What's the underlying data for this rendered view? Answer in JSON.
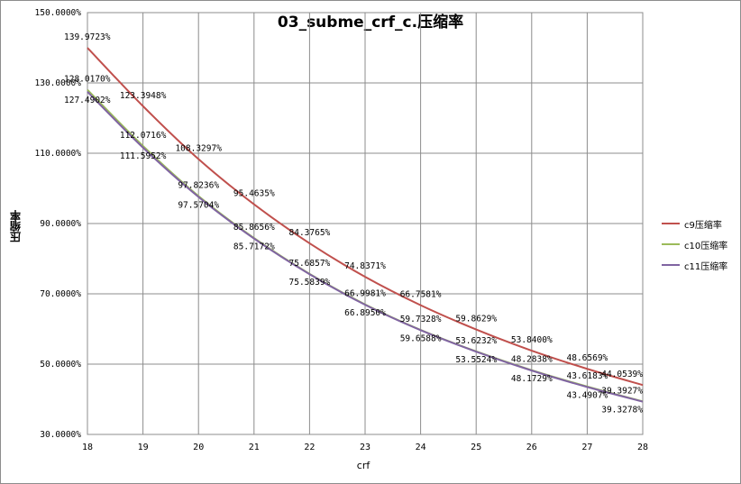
{
  "chart_data": {
    "type": "line",
    "title": "03_subme_crf_c.压缩率",
    "xlabel": "crf",
    "ylabel": "压缩率",
    "x": [
      18,
      19,
      20,
      21,
      22,
      23,
      24,
      25,
      26,
      27,
      28
    ],
    "ylim": [
      30,
      150
    ],
    "yticks": [
      "30.0000%",
      "50.0000%",
      "70.0000%",
      "90.0000%",
      "110.0000%",
      "130.0000%",
      "150.0000%"
    ],
    "xticks": [
      "18",
      "19",
      "20",
      "21",
      "22",
      "23",
      "24",
      "25",
      "26",
      "27",
      "28"
    ],
    "grid": true,
    "legend_position": "right",
    "series": [
      {
        "name": "c9压缩率",
        "color": "#c0504d",
        "values": [
          139.9723,
          123.3948,
          108.3297,
          95.4635,
          84.3765,
          74.8371,
          66.7581,
          59.8629,
          53.84,
          48.6569,
          44.0539
        ],
        "labels": [
          "139.9723%",
          "123.3948%",
          "108.3297%",
          "95.4635%",
          "84.3765%",
          "74.8371%",
          "66.7581%",
          "59.8629%",
          "53.8400%",
          "48.6569%",
          "44.0539%"
        ]
      },
      {
        "name": "c10压缩率",
        "color": "#9bbb59",
        "values": [
          128.017,
          112.0716,
          97.8236,
          85.8656,
          75.6857,
          66.9981,
          59.7328,
          53.6232,
          48.2838,
          43.6183,
          39.3927
        ],
        "labels": [
          "128.0170%",
          "112.0716%",
          "97.8236%",
          "85.8656%",
          "75.6857%",
          "66.9981%",
          "59.7328%",
          "53.6232%",
          "48.2838%",
          "43.6183%",
          "39.3927%"
        ]
      },
      {
        "name": "c11压缩率",
        "color": "#8064a2",
        "values": [
          127.4902,
          111.5952,
          97.5704,
          85.7172,
          75.5839,
          66.895,
          59.6588,
          53.5524,
          48.1729,
          43.4907,
          39.3278
        ],
        "labels": [
          "127.4902%",
          "111.5952%",
          "97.5704%",
          "85.7172%",
          "75.5839%",
          "66.8950%",
          "59.6588%",
          "53.5524%",
          "48.1729%",
          "43.4907%",
          "39.3278%"
        ]
      }
    ]
  }
}
